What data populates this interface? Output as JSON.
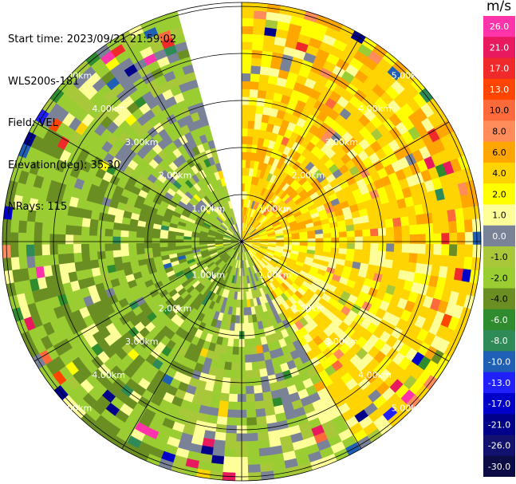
{
  "header": {
    "start_time": "Start time: 2023/09/21 21:59:02",
    "instrument": "WLS200s-181",
    "field": "Field: VEL",
    "elevation": "Elevation(deg): 35.30",
    "nrays": "NRays: 115"
  },
  "range_rings": {
    "labels": [
      "1.00km",
      "2.00km",
      "3.00km",
      "4.00km",
      "5.00km"
    ],
    "values_km": [
      1,
      2,
      3,
      4,
      5
    ]
  },
  "legend": {
    "unit": "m/s",
    "labels": [
      "26.0",
      "21.0",
      "17.0",
      "13.0",
      "10.0",
      "8.0",
      "6.0",
      "4.0",
      "2.0",
      "1.0",
      "0.0",
      "-1.0",
      "-2.0",
      "-4.0",
      "-6.0",
      "-8.0",
      "-10.0",
      "-13.0",
      "-17.0",
      "-21.0",
      "-26.0",
      "-30.0"
    ],
    "colors": [
      "#ff33aa",
      "#e8195e",
      "#f02a2a",
      "#ff4500",
      "#ff6a3a",
      "#ff8c5a",
      "#ffa600",
      "#ffd400",
      "#ffff00",
      "#ffff99",
      "#7a8298",
      "#a8c83a",
      "#9acd32",
      "#6b8e23",
      "#2e8b2e",
      "#2e8b57",
      "#1f5fb4",
      "#2020ff",
      "#0000c8",
      "#00008b",
      "#12126e",
      "#0b0b45"
    ]
  },
  "chart_data": {
    "type": "heatmap",
    "field": "VEL",
    "units": "m/s",
    "max_range_km": 5.5,
    "rays": 115,
    "sectors": [
      {
        "az_from": 0,
        "az_to": 90,
        "dominant_ms": 3.0
      },
      {
        "az_from": 90,
        "az_to": 150,
        "dominant_ms": 2.0
      },
      {
        "az_from": 150,
        "az_to": 200,
        "dominant_ms": -1.5
      },
      {
        "az_from": 200,
        "az_to": 300,
        "dominant_ms": -4.0
      },
      {
        "az_from": 300,
        "az_to": 345,
        "dominant_ms": -2.0
      },
      {
        "az_from": 345,
        "az_to": 360,
        "dominant_ms": 1.5
      }
    ],
    "gap_azimuth_deg": [
      343,
      359
    ]
  }
}
